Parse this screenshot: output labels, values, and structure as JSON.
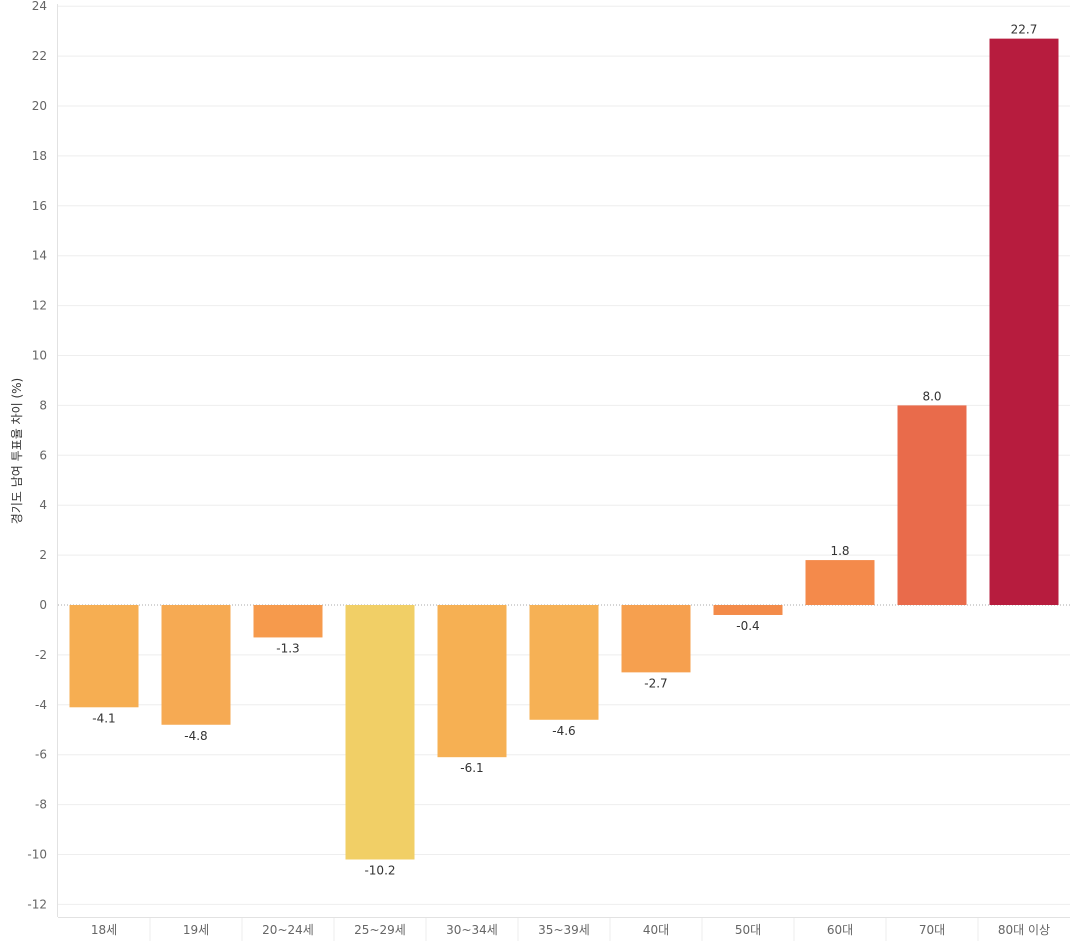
{
  "chart_data": {
    "type": "bar",
    "title": "",
    "xlabel": "",
    "ylabel": "경기도 남여 투표율 차이 (%)",
    "ylim": [
      -12.5,
      24
    ],
    "yticks": [
      24,
      22,
      20,
      18,
      16,
      14,
      12,
      10,
      8,
      6,
      4,
      2,
      0,
      -2,
      -4,
      -6,
      -8,
      -10,
      -12
    ],
    "categories": [
      "18세",
      "19세",
      "20~24세",
      "25~29세",
      "30~34세",
      "35~39세",
      "40대",
      "50대",
      "60대",
      "70대",
      "80대 이상"
    ],
    "values": [
      -4.1,
      -4.8,
      -1.3,
      -10.2,
      -6.1,
      -4.6,
      -2.7,
      -0.4,
      1.8,
      8.0,
      22.7
    ],
    "value_labels": [
      "-4.1",
      "-4.8",
      "-1.3",
      "-10.2",
      "-6.1",
      "-4.6",
      "-2.7",
      "-0.4",
      "1.8",
      "8.0",
      "22.7"
    ],
    "bar_colors": [
      "#f6ae52",
      "#f6aa53",
      "#f69a4c",
      "#f1cf66",
      "#f6b053",
      "#f6b155",
      "#f6a04f",
      "#f38b49",
      "#f48a4b",
      "#e96b4b",
      "#b71c3e"
    ],
    "grid": true,
    "legend": "none"
  }
}
